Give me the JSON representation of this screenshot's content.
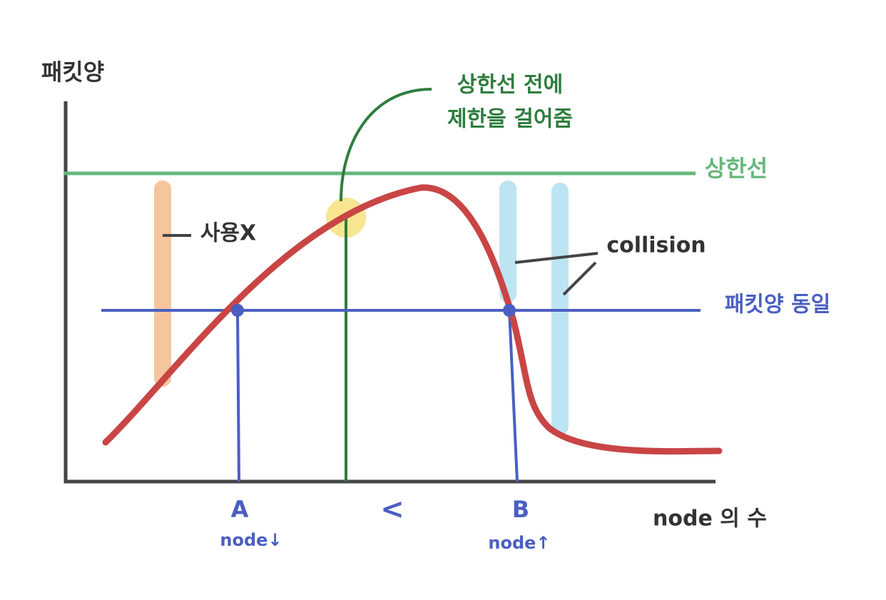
{
  "y_axis_label": "패킷양",
  "annotation": {
    "line1": "상한선 전에",
    "line2": "제한을 걸어줌"
  },
  "upper_limit_label": "상한선",
  "unused_label": "사용X",
  "collision_label": "collision",
  "same_packet_label": "패킷양 동일",
  "point_a": {
    "label": "A",
    "sub": "node↓"
  },
  "comparison": "<",
  "point_b": {
    "label": "B",
    "sub": "node↑"
  },
  "x_axis_label": "node 의 수"
}
